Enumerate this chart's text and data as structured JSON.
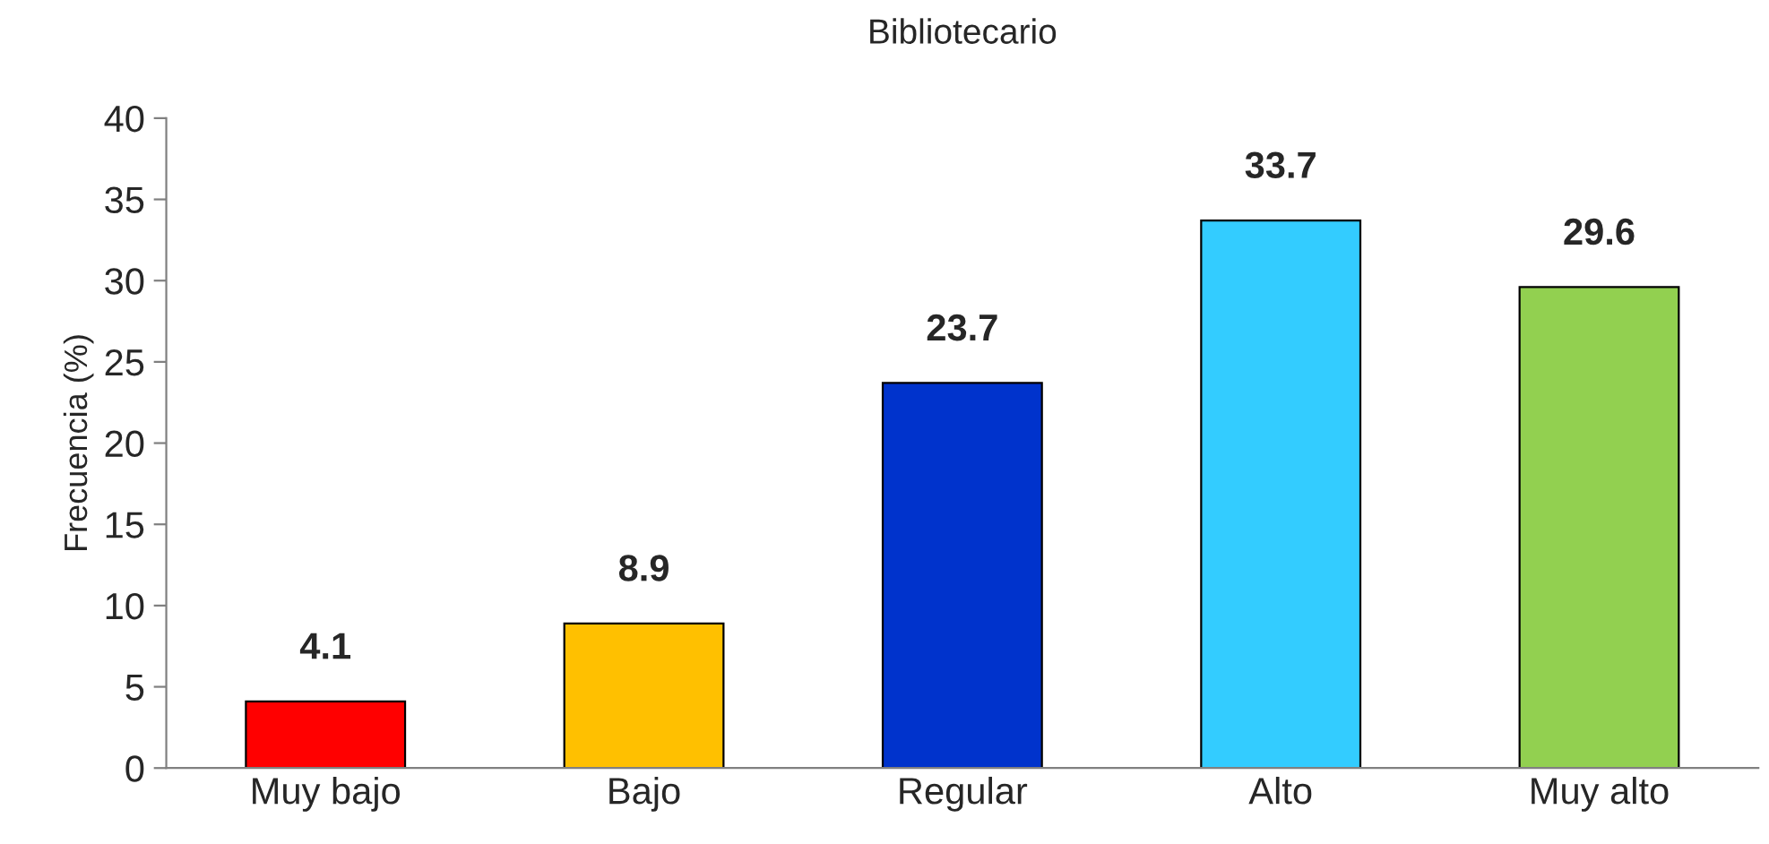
{
  "chart_data": {
    "type": "bar",
    "title": "Bibliotecario",
    "ylabel": "Frecuencia (%)",
    "categories": [
      "Muy bajo",
      "Bajo",
      "Regular",
      "Alto",
      "Muy alto"
    ],
    "values": [
      4.1,
      8.9,
      23.7,
      33.7,
      29.6
    ],
    "colors": [
      "#ff0000",
      "#ffc000",
      "#0033cc",
      "#33ccff",
      "#92d050"
    ],
    "ylim": [
      0,
      40
    ],
    "yticks": [
      0,
      5,
      10,
      15,
      20,
      25,
      30,
      35,
      40
    ],
    "data_labels": true,
    "grid": false,
    "legend": false
  }
}
